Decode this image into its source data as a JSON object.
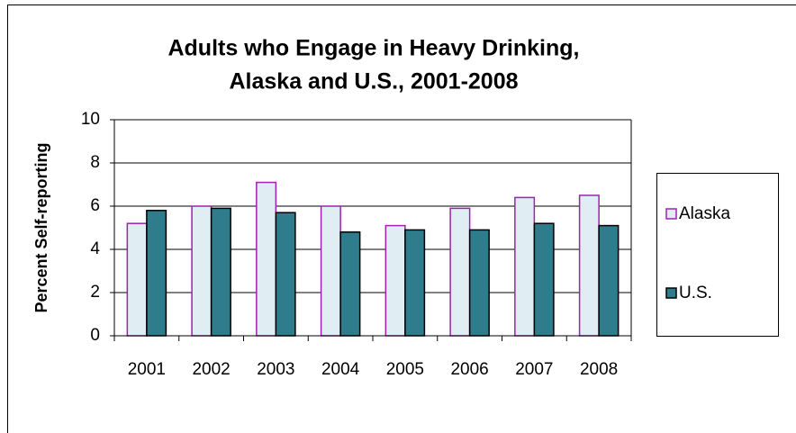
{
  "chart_data": {
    "type": "bar",
    "title": [
      "Adults who Engage in Heavy Drinking,",
      "Alaska and U.S., 2001-2008"
    ],
    "y_label": "Percent Self-reporting",
    "categories": [
      "2001",
      "2002",
      "2003",
      "2004",
      "2005",
      "2006",
      "2007",
      "2008"
    ],
    "series": [
      {
        "name": "Alaska",
        "color": "#e0eef4",
        "border": "#a020b0",
        "values": [
          5.2,
          6.0,
          7.1,
          6.0,
          5.1,
          5.9,
          6.4,
          6.5
        ]
      },
      {
        "name": "U.S.",
        "color": "#2e7c8c",
        "border": "#000000",
        "values": [
          5.8,
          5.9,
          5.7,
          4.8,
          4.9,
          4.9,
          5.2,
          5.1
        ]
      }
    ],
    "ylim": [
      0,
      10
    ],
    "yticks": [
      0,
      2,
      4,
      6,
      8,
      10
    ],
    "grid": true,
    "legend": "right"
  }
}
